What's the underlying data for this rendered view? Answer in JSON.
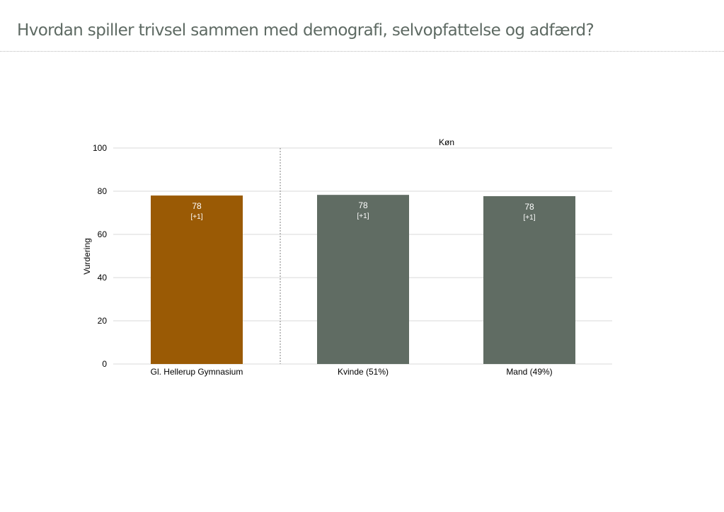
{
  "page": {
    "title": "Hvordan spiller trivsel sammen med demografi, selvopfattelse og adfærd?"
  },
  "chart_data": {
    "type": "bar",
    "title": "",
    "xlabel": "",
    "ylabel": "Vurdering",
    "ylim": [
      0,
      100
    ],
    "yticks": [
      0,
      20,
      40,
      60,
      80,
      100
    ],
    "grid": true,
    "group_label": "Køn",
    "categories": [
      "Gl. Hellerup Gymnasium",
      "Kvinde (51%)",
      "Mand (49%)"
    ],
    "values": [
      78,
      78.3,
      77.7
    ],
    "value_labels": [
      "78",
      "78",
      "78"
    ],
    "change_labels": [
      "[+1]",
      "[+1]",
      "[+1]"
    ],
    "colors": [
      "#9a5a05",
      "#606c63",
      "#606c63"
    ]
  }
}
